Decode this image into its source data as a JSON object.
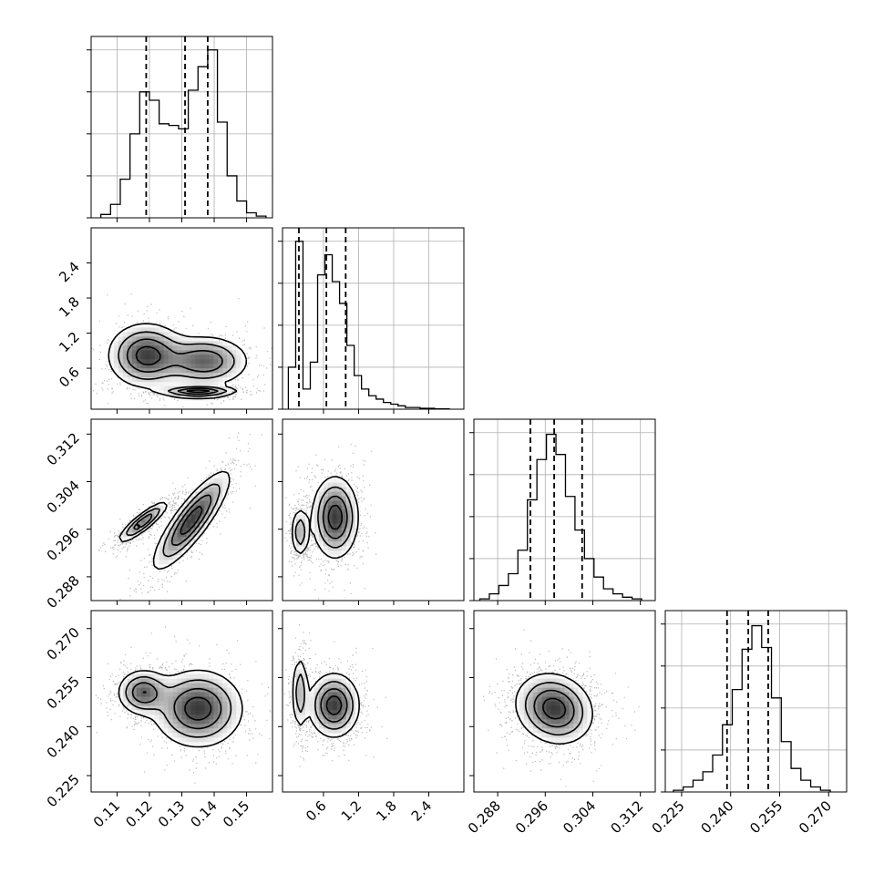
{
  "chart_data": {
    "type": "corner",
    "parameters": [
      {
        "id": "p0",
        "range": [
          0.102,
          0.158
        ],
        "ticks": [
          "0.11",
          "0.12",
          "0.13",
          "0.14",
          "0.15"
        ],
        "quantiles": [
          0.119,
          0.131,
          0.138
        ],
        "hist_y_max": 1.08,
        "bins": [
          0.105,
          0.108,
          0.111,
          0.114,
          0.117,
          0.12,
          0.123,
          0.126,
          0.129,
          0.132,
          0.135,
          0.138,
          0.141,
          0.144,
          0.147,
          0.15,
          0.153,
          0.156
        ],
        "hist": [
          0.02,
          0.08,
          0.23,
          0.5,
          0.75,
          0.7,
          0.56,
          0.55,
          0.53,
          0.76,
          0.9,
          1.0,
          0.57,
          0.25,
          0.1,
          0.03,
          0.01
        ]
      },
      {
        "id": "p1",
        "range": [
          -0.1,
          3.0
        ],
        "ticks": [
          "0.6",
          "1.2",
          "1.8",
          "2.4"
        ],
        "quantiles": [
          0.18,
          0.65,
          0.98
        ],
        "hist_y_max": 1.08,
        "bins": [
          0.0,
          0.125,
          0.25,
          0.375,
          0.5,
          0.625,
          0.75,
          0.875,
          1.0,
          1.125,
          1.25,
          1.375,
          1.5,
          1.625,
          1.75,
          1.875,
          2.0,
          2.125,
          2.25,
          2.5,
          2.75
        ],
        "hist": [
          0.25,
          1.0,
          0.12,
          0.28,
          0.8,
          0.92,
          0.76,
          0.63,
          0.38,
          0.2,
          0.12,
          0.08,
          0.06,
          0.04,
          0.03,
          0.02,
          0.01,
          0.01,
          0.005,
          0.002
        ]
      },
      {
        "id": "p2",
        "range": [
          0.284,
          0.3145
        ],
        "ticks": [
          "0.288",
          "0.296",
          "0.304",
          "0.312"
        ],
        "quantiles": [
          0.2935,
          0.2975,
          0.3022
        ],
        "hist_y_max": 1.08,
        "bins": [
          0.285,
          0.2866,
          0.2882,
          0.2898,
          0.2914,
          0.293,
          0.2946,
          0.2962,
          0.2978,
          0.2994,
          0.301,
          0.3026,
          0.3042,
          0.3058,
          0.3074,
          0.309,
          0.3106,
          0.3122
        ],
        "hist": [
          0.01,
          0.04,
          0.09,
          0.16,
          0.3,
          0.6,
          0.84,
          0.99,
          0.87,
          0.62,
          0.42,
          0.25,
          0.14,
          0.07,
          0.04,
          0.02,
          0.01
        ]
      },
      {
        "id": "p3",
        "range": [
          0.22,
          0.2755
        ],
        "ticks": [
          "0.225",
          "0.240",
          "0.255",
          "0.270"
        ],
        "quantiles": [
          0.2389,
          0.2454,
          0.2515
        ],
        "hist_y_max": 1.08,
        "bins": [
          0.2225,
          0.2255,
          0.2285,
          0.2315,
          0.2345,
          0.2375,
          0.2405,
          0.2435,
          0.2465,
          0.2495,
          0.2525,
          0.2555,
          0.2585,
          0.2615,
          0.2645,
          0.2675,
          0.2705
        ],
        "hist": [
          0.01,
          0.03,
          0.07,
          0.12,
          0.22,
          0.4,
          0.61,
          0.85,
          0.99,
          0.86,
          0.56,
          0.3,
          0.14,
          0.07,
          0.03,
          0.01
        ]
      }
    ],
    "clusters": {
      "p0,p1": [
        {
          "c": [
            0.119,
            0.82
          ],
          "s": [
            0.006,
            0.28
          ],
          "w": 0.35
        },
        {
          "c": [
            0.137,
            0.72
          ],
          "s": [
            0.007,
            0.22
          ],
          "w": 0.3
        },
        {
          "c": [
            0.135,
            0.2
          ],
          "s": [
            0.006,
            0.05
          ],
          "w": 0.35
        }
      ],
      "p0,p2": [
        {
          "c": [
            0.118,
            0.2972
          ],
          "s": [
            0.004,
            0.0018
          ],
          "rho": 0.88,
          "w": 0.45
        },
        {
          "c": [
            0.133,
            0.2975
          ],
          "s": [
            0.006,
            0.0042
          ],
          "rho": 0.85,
          "w": 0.55
        }
      ],
      "p1,p2": [
        {
          "c": [
            0.2,
            0.2955
          ],
          "s": [
            0.08,
            0.0022
          ],
          "w": 0.35
        },
        {
          "c": [
            0.8,
            0.298
          ],
          "s": [
            0.2,
            0.0035
          ],
          "w": 0.65
        }
      ],
      "p0,p3": [
        {
          "c": [
            0.118,
            0.2505
          ],
          "s": [
            0.004,
            0.0035
          ],
          "w": 0.45
        },
        {
          "c": [
            0.135,
            0.2455
          ],
          "s": [
            0.007,
            0.006
          ],
          "w": 0.55
        }
      ],
      "p1,p3": [
        {
          "c": [
            0.2,
            0.2505
          ],
          "s": [
            0.07,
            0.006
          ],
          "w": 0.35
        },
        {
          "c": [
            0.78,
            0.2465
          ],
          "s": [
            0.22,
            0.005
          ],
          "w": 0.65
        }
      ],
      "p2,p3": [
        {
          "c": [
            0.2975,
            0.2455
          ],
          "s": [
            0.0033,
            0.0055
          ],
          "rho": -0.15,
          "w": 1.0
        }
      ]
    },
    "levels": [
      0.85,
      0.6,
      0.35,
      0.15
    ]
  }
}
